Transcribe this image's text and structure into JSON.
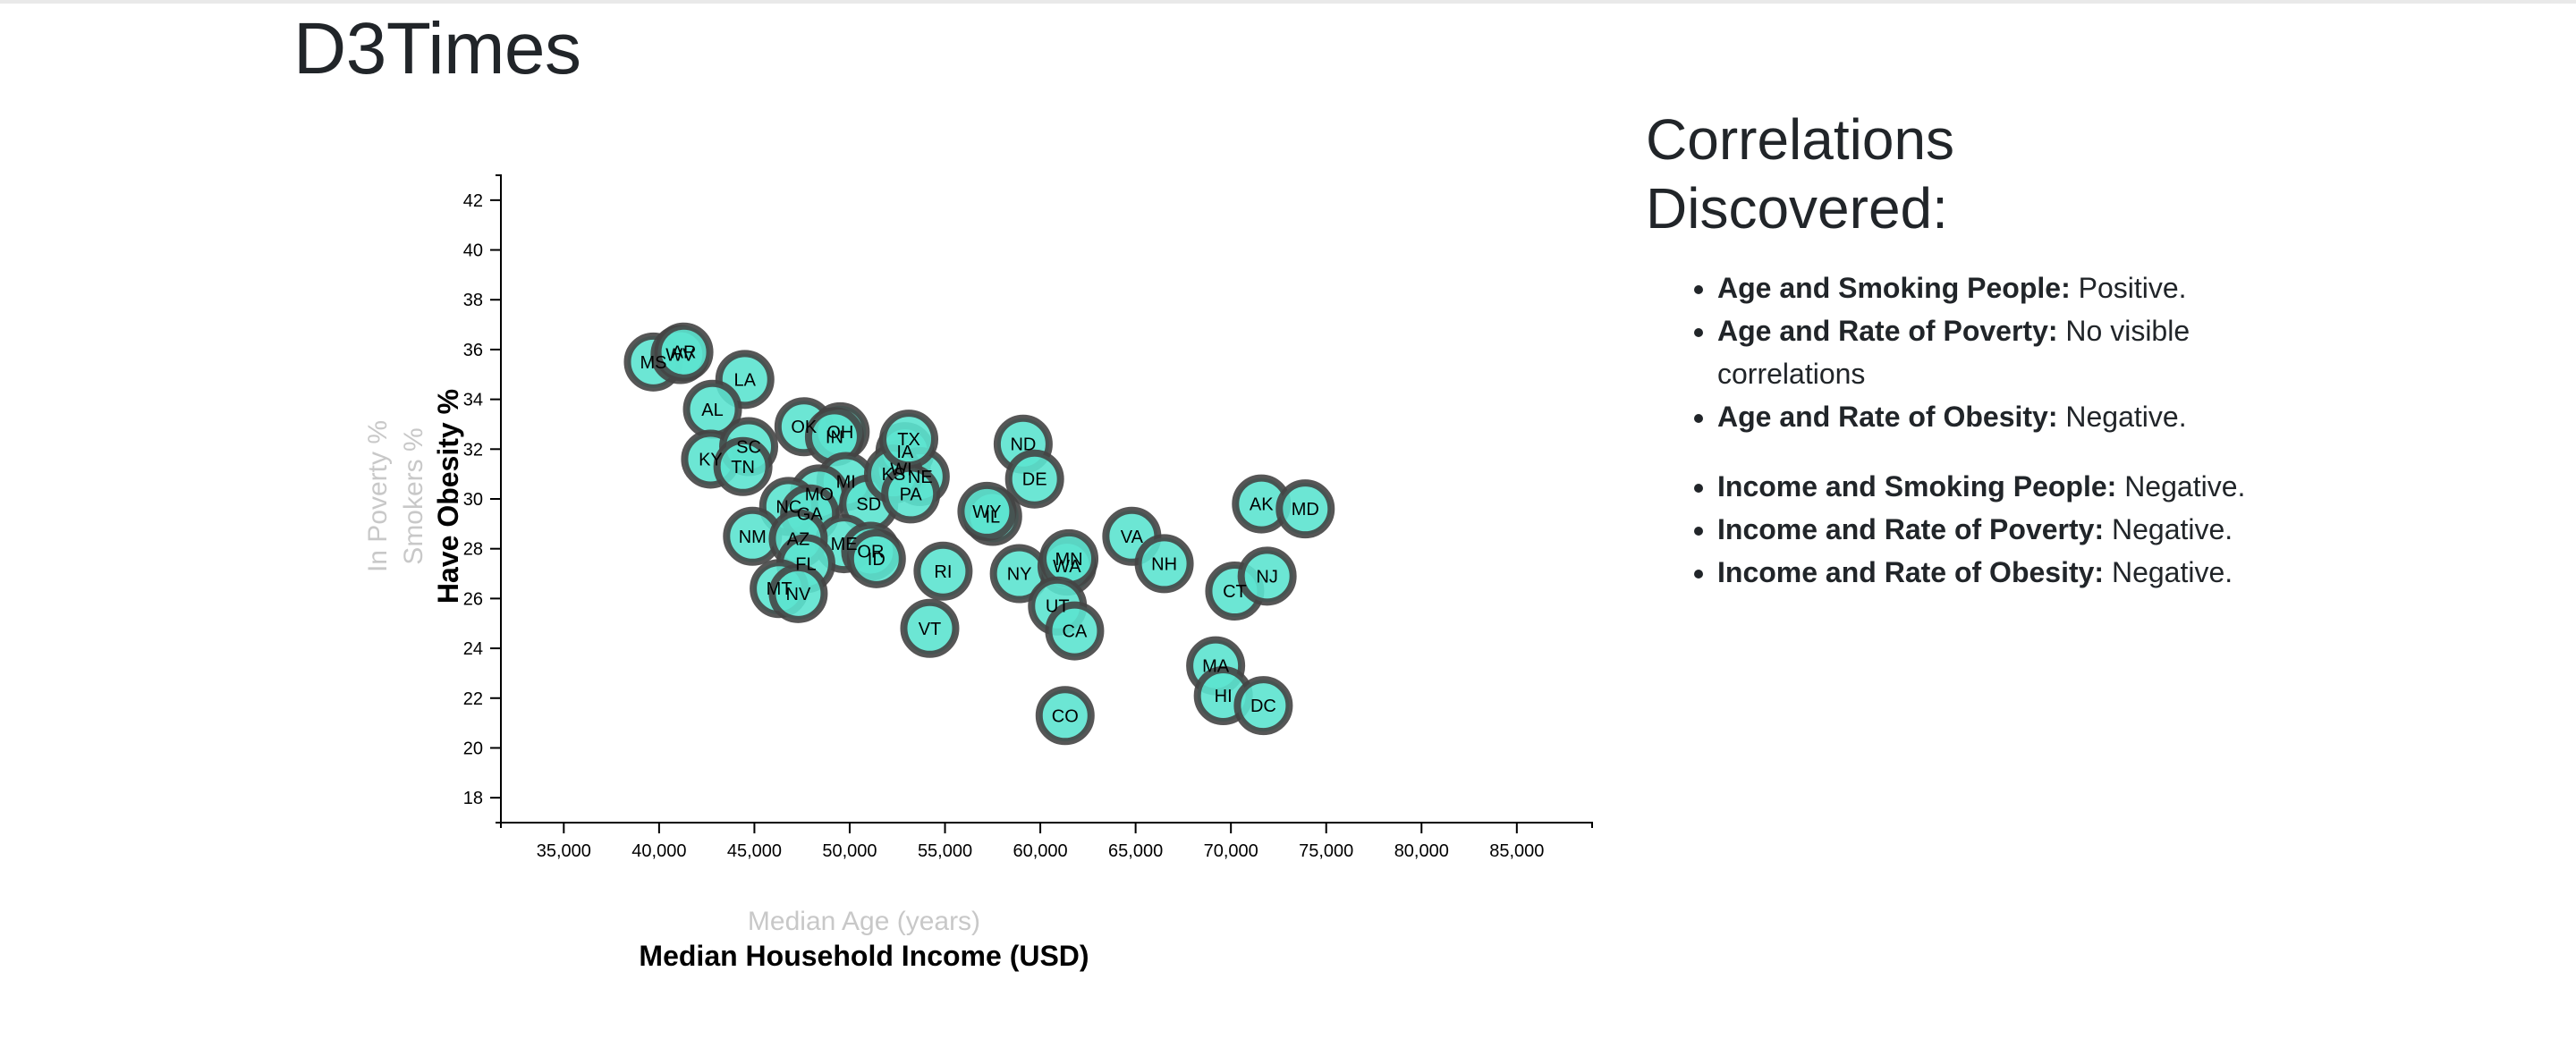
{
  "header": {
    "title": "D3Times"
  },
  "panel": {
    "title": "Correlations Discovered:",
    "age_items": [
      {
        "label": "Age and Smoking People:",
        "value": "Positive."
      },
      {
        "label": "Age and Rate of Poverty:",
        "value": "No visible correlations"
      },
      {
        "label": "Age and Rate of Obesity:",
        "value": "Negative."
      }
    ],
    "income_items": [
      {
        "label": "Income and Smoking People:",
        "value": "Negative."
      },
      {
        "label": "Income and Rate of Poverty:",
        "value": "Negative."
      },
      {
        "label": "Income and Rate of Obesity:",
        "value": "Negative."
      }
    ]
  },
  "chart_data": {
    "type": "scatter",
    "title": "",
    "x_axis_labels": [
      {
        "text": "Median Age (years)",
        "active": false
      },
      {
        "text": "Median Household Income (USD)",
        "active": true
      }
    ],
    "y_axis_labels": [
      {
        "text": "In Poverty %",
        "active": false
      },
      {
        "text": "Smokers %",
        "active": false
      },
      {
        "text": "Have Obesity %",
        "active": true
      }
    ],
    "xlabel": "Median Household Income (USD)",
    "ylabel": "Have Obesity %",
    "xlim": [
      31700,
      88950
    ],
    "ylim": [
      17,
      43
    ],
    "x_ticks": [
      "35,000",
      "40,000",
      "45,000",
      "50,000",
      "55,000",
      "60,000",
      "65,000",
      "70,000",
      "75,000",
      "80,000",
      "85,000"
    ],
    "x_tick_values": [
      35000,
      40000,
      45000,
      50000,
      55000,
      60000,
      65000,
      70000,
      75000,
      80000,
      85000
    ],
    "y_ticks": [
      "18",
      "20",
      "22",
      "24",
      "26",
      "28",
      "30",
      "32",
      "34",
      "36",
      "38",
      "40",
      "42"
    ],
    "y_tick_values": [
      18,
      20,
      22,
      24,
      26,
      28,
      30,
      32,
      34,
      36,
      38,
      40,
      42
    ],
    "colors": {
      "fill": "#5ce3cf",
      "stroke": "#444444",
      "axis": "#000000",
      "inactive_label": "#c8c8c8"
    },
    "points": [
      {
        "abbr": "MS",
        "x": 39700,
        "y": 35.5
      },
      {
        "abbr": "WV",
        "x": 41100,
        "y": 35.8
      },
      {
        "abbr": "LA",
        "x": 44500,
        "y": 34.8
      },
      {
        "abbr": "AL",
        "x": 42800,
        "y": 33.6
      },
      {
        "abbr": "KY",
        "x": 42700,
        "y": 31.6
      },
      {
        "abbr": "SC",
        "x": 44700,
        "y": 32.1
      },
      {
        "abbr": "TN",
        "x": 44400,
        "y": 31.3
      },
      {
        "abbr": "AR",
        "x": 41300,
        "y": 35.9
      },
      {
        "abbr": "OK",
        "x": 47600,
        "y": 32.9
      },
      {
        "abbr": "OH",
        "x": 49500,
        "y": 32.7
      },
      {
        "abbr": "IN",
        "x": 49200,
        "y": 32.5
      },
      {
        "abbr": "MI",
        "x": 49800,
        "y": 30.7
      },
      {
        "abbr": "MO",
        "x": 48400,
        "y": 30.2
      },
      {
        "abbr": "NC",
        "x": 46800,
        "y": 29.7
      },
      {
        "abbr": "GA",
        "x": 47900,
        "y": 29.4
      },
      {
        "abbr": "SD",
        "x": 51000,
        "y": 29.8
      },
      {
        "abbr": "WI",
        "x": 52700,
        "y": 31.2
      },
      {
        "abbr": "IA",
        "x": 52900,
        "y": 31.9
      },
      {
        "abbr": "NE",
        "x": 53700,
        "y": 30.9
      },
      {
        "abbr": "KS",
        "x": 52300,
        "y": 31.0
      },
      {
        "abbr": "PA",
        "x": 53200,
        "y": 30.2
      },
      {
        "abbr": "ME",
        "x": 49700,
        "y": 28.2
      },
      {
        "abbr": "OR",
        "x": 51100,
        "y": 27.9
      },
      {
        "abbr": "ID",
        "x": 51400,
        "y": 27.6
      },
      {
        "abbr": "NM",
        "x": 44900,
        "y": 28.5
      },
      {
        "abbr": "AZ",
        "x": 47300,
        "y": 28.4
      },
      {
        "abbr": "FL",
        "x": 47700,
        "y": 27.4
      },
      {
        "abbr": "MT",
        "x": 46300,
        "y": 26.4
      },
      {
        "abbr": "NV",
        "x": 47300,
        "y": 26.2
      },
      {
        "abbr": "TX",
        "x": 53100,
        "y": 32.4
      },
      {
        "abbr": "IL",
        "x": 57500,
        "y": 29.3
      },
      {
        "abbr": "VT",
        "x": 54200,
        "y": 24.8
      },
      {
        "abbr": "RI",
        "x": 54900,
        "y": 27.1
      },
      {
        "abbr": "ND",
        "x": 59100,
        "y": 32.2
      },
      {
        "abbr": "DE",
        "x": 59700,
        "y": 30.8
      },
      {
        "abbr": "WY",
        "x": 57200,
        "y": 29.5
      },
      {
        "abbr": "NY",
        "x": 58900,
        "y": 27.0
      },
      {
        "abbr": "WA",
        "x": 61400,
        "y": 27.3
      },
      {
        "abbr": "MN",
        "x": 61500,
        "y": 27.6
      },
      {
        "abbr": "UT",
        "x": 60900,
        "y": 25.7
      },
      {
        "abbr": "CA",
        "x": 61800,
        "y": 24.7
      },
      {
        "abbr": "CO",
        "x": 61300,
        "y": 21.3
      },
      {
        "abbr": "VA",
        "x": 64800,
        "y": 28.5
      },
      {
        "abbr": "NH",
        "x": 66500,
        "y": 27.4
      },
      {
        "abbr": "CT",
        "x": 70200,
        "y": 26.3
      },
      {
        "abbr": "NJ",
        "x": 71900,
        "y": 26.9
      },
      {
        "abbr": "AK",
        "x": 71600,
        "y": 29.8
      },
      {
        "abbr": "MD",
        "x": 73900,
        "y": 29.6
      },
      {
        "abbr": "MA",
        "x": 69200,
        "y": 23.3
      },
      {
        "abbr": "HI",
        "x": 69600,
        "y": 22.1
      },
      {
        "abbr": "DC",
        "x": 71700,
        "y": 21.7
      }
    ]
  }
}
